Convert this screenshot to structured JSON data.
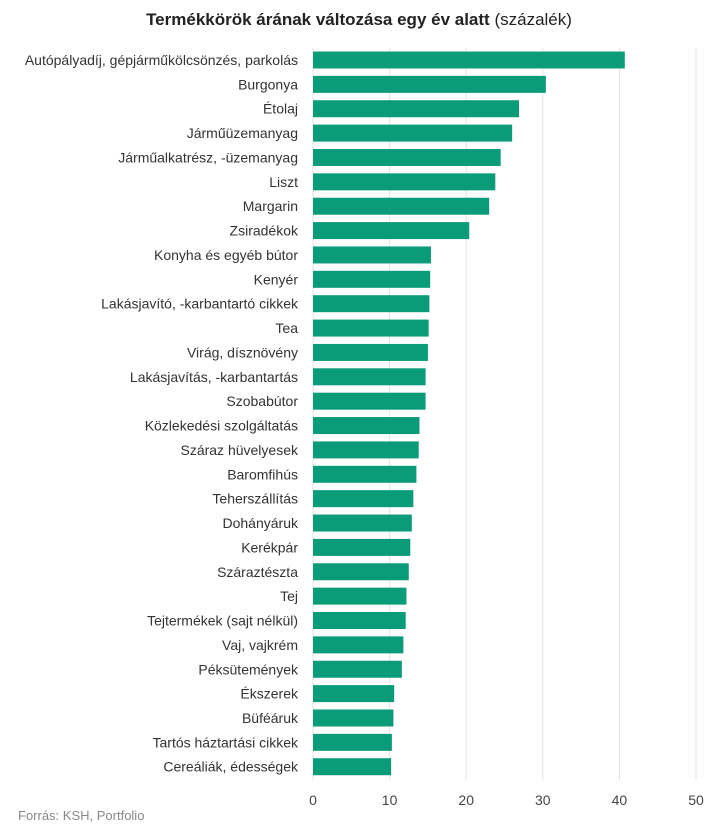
{
  "chart_data": {
    "type": "bar",
    "orientation": "horizontal",
    "title_bold": "Termékkörök árának változása egy év alatt",
    "title_normal": "(százalék)",
    "categories": [
      "Autópályadíj, gépjárműkölcsönzés, parkolás",
      "Burgonya",
      "Étolaj",
      "Járműüzemanyag",
      "Járműalkatrész, -üzemanyag",
      "Liszt",
      "Margarin",
      "Zsiradékok",
      "Konyha és egyéb bútor",
      "Kenyér",
      "Lakásjavító, -karbantartó cikkek",
      "Tea",
      "Virág, dísznövény",
      "Lakásjavítás, -karbantartás",
      "Szobabútor",
      "Közlekedési szolgáltatás",
      "Száraz hüvelyesek",
      "Baromfihús",
      "Teherszállítás",
      "Dohányáruk",
      "Kerékpár",
      "Száraztészta",
      "Tej",
      "Tejtermékek (sajt nélkül)",
      "Vaj, vajkrém",
      "Péksütemények",
      "Ékszerek",
      "Büféáruk",
      "Tartós háztartási cikkek",
      "Cereáliák, édességek"
    ],
    "values": [
      40.7,
      30.4,
      26.9,
      26.0,
      24.5,
      23.8,
      23.0,
      20.4,
      15.4,
      15.3,
      15.2,
      15.1,
      15.0,
      14.7,
      14.7,
      13.9,
      13.8,
      13.5,
      13.1,
      12.9,
      12.7,
      12.5,
      12.2,
      12.1,
      11.8,
      11.6,
      10.6,
      10.5,
      10.3,
      10.2
    ],
    "xlim": [
      0,
      50
    ],
    "xticks": [
      "0",
      "10",
      "20",
      "30",
      "40",
      "50"
    ],
    "grid": true,
    "bar_color": "#0a9c78"
  },
  "source": "Forrás: KSH, Portfolio"
}
